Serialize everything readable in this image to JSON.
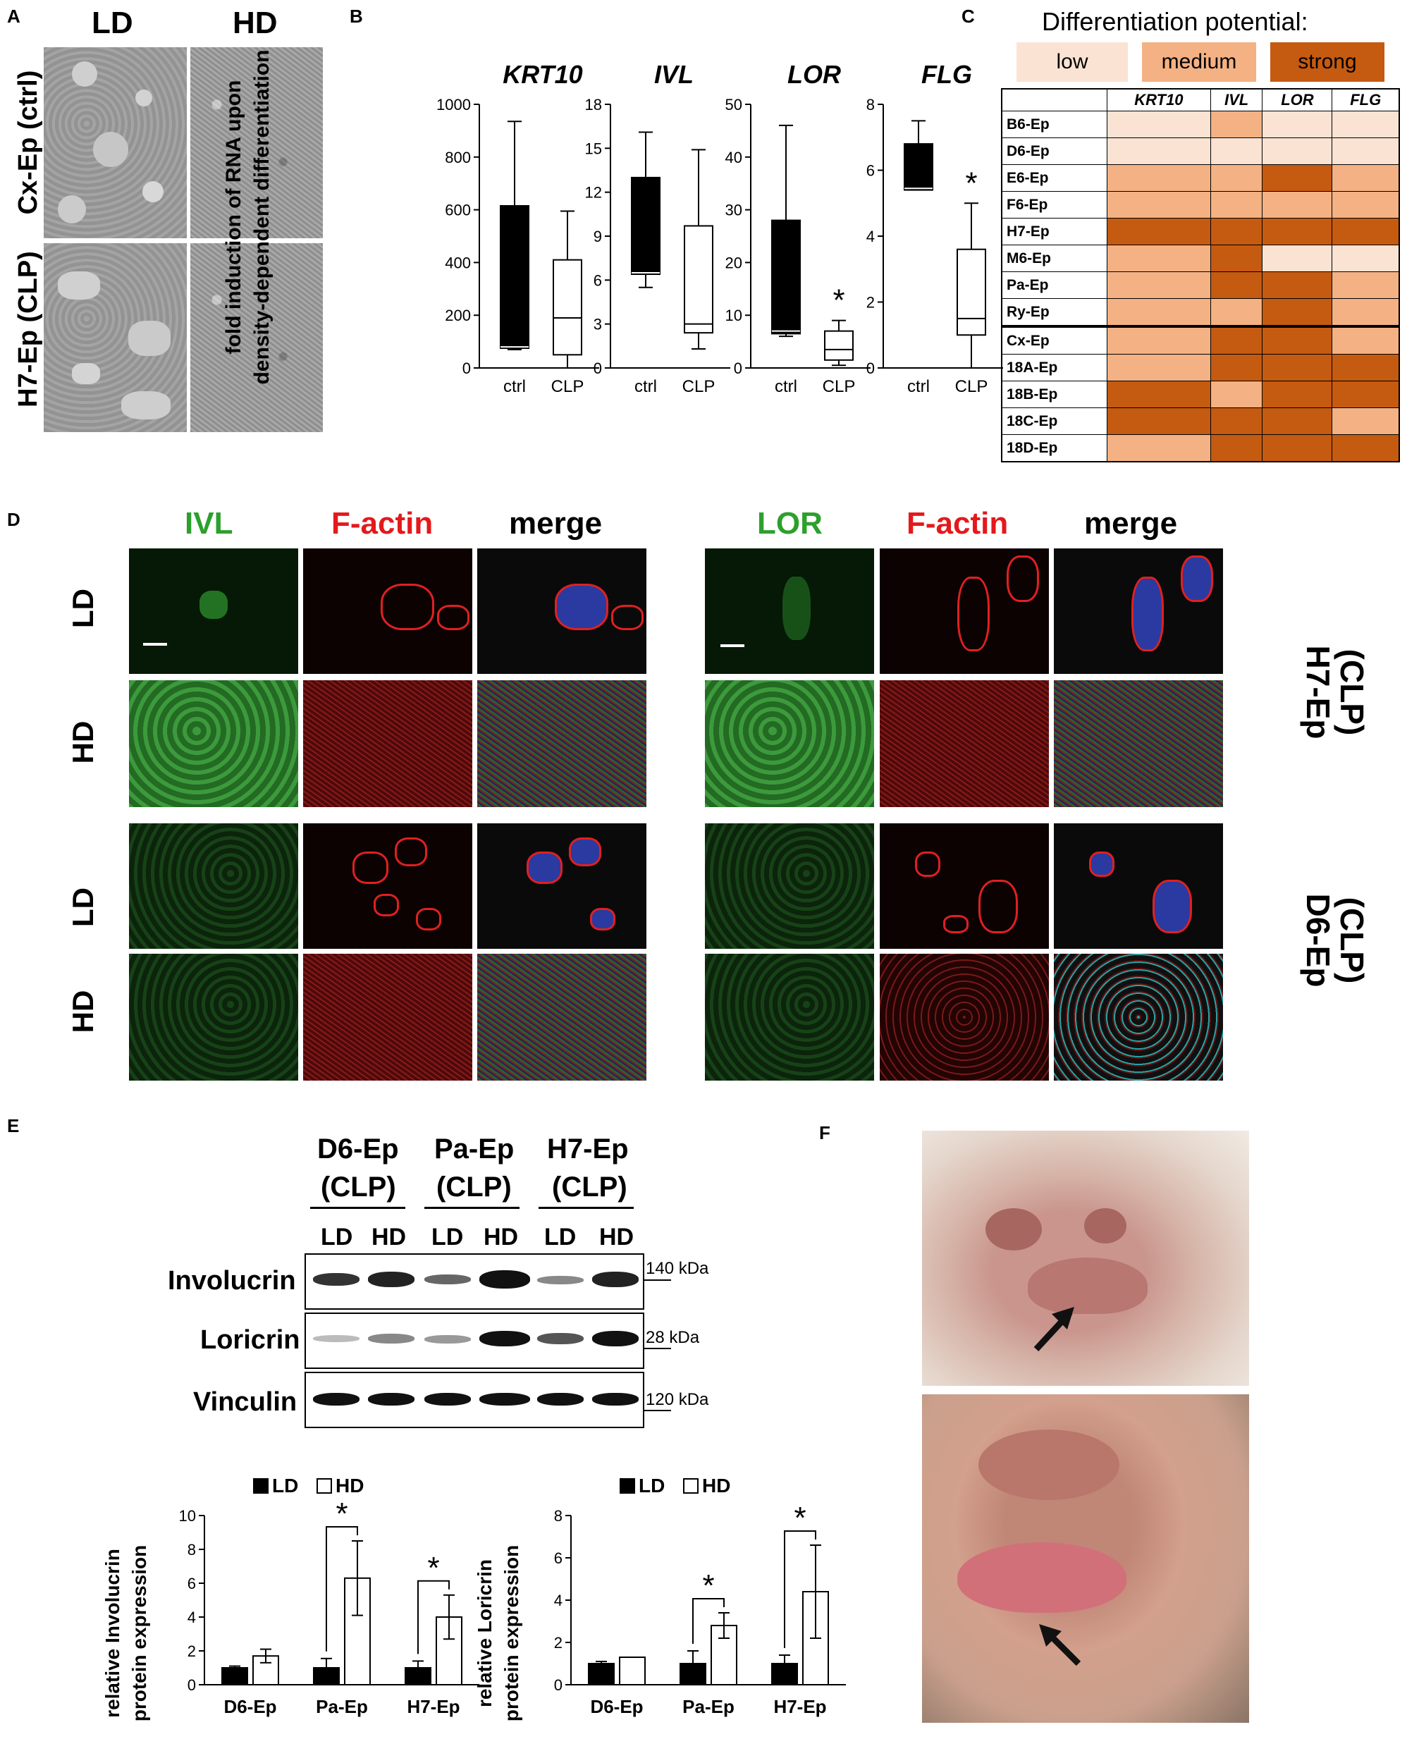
{
  "panels": {
    "A": "A",
    "B": "B",
    "C": "C",
    "D": "D",
    "E": "E",
    "F": "F"
  },
  "panelA": {
    "col_labels": [
      "LD",
      "HD"
    ],
    "row_labels": [
      "Cx-Ep (ctrl)",
      "H7-Ep (CLP)"
    ]
  },
  "panelB": {
    "ylabel_line1": "fold induction of RNA upon",
    "ylabel_line2": "density-dependent  differentiation"
  },
  "panelC": {
    "title": "Differentiation potential:",
    "legend": [
      {
        "label": "low",
        "color": "#fbe3d4"
      },
      {
        "label": "medium",
        "color": "#f4b183"
      },
      {
        "label": "strong",
        "color": "#c55a11"
      }
    ],
    "columns": [
      "KRT10",
      "IVL",
      "LOR",
      "FLG"
    ],
    "rows": [
      {
        "name": "B6-Ep",
        "levels": [
          0,
          1,
          0,
          0
        ]
      },
      {
        "name": "D6-Ep",
        "levels": [
          0,
          0,
          0,
          0
        ]
      },
      {
        "name": "E6-Ep",
        "levels": [
          1,
          1,
          2,
          1
        ]
      },
      {
        "name": "F6-Ep",
        "levels": [
          1,
          1,
          1,
          1
        ]
      },
      {
        "name": "H7-Ep",
        "levels": [
          2,
          2,
          2,
          2
        ]
      },
      {
        "name": "M6-Ep",
        "levels": [
          1,
          2,
          0,
          0
        ]
      },
      {
        "name": "Pa-Ep",
        "levels": [
          1,
          2,
          2,
          1
        ]
      },
      {
        "name": "Ry-Ep",
        "levels": [
          1,
          1,
          2,
          1
        ]
      },
      {
        "name": "Cx-Ep",
        "levels": [
          1,
          2,
          2,
          1
        ]
      },
      {
        "name": "18A-Ep",
        "levels": [
          1,
          2,
          2,
          2
        ]
      },
      {
        "name": "18B-Ep",
        "levels": [
          2,
          1,
          2,
          2
        ]
      },
      {
        "name": "18C-Ep",
        "levels": [
          2,
          2,
          2,
          1
        ]
      },
      {
        "name": "18D-Ep",
        "levels": [
          1,
          2,
          2,
          2
        ]
      }
    ]
  },
  "panelD": {
    "left_cols": [
      {
        "label": "IVL",
        "color": "#2ca02c"
      },
      {
        "label": "F-actin",
        "color": "#e3191c"
      },
      {
        "label": "merge",
        "color": "#000000"
      }
    ],
    "right_cols": [
      {
        "label": "LOR",
        "color": "#2ca02c"
      },
      {
        "label": "F-actin",
        "color": "#e3191c"
      },
      {
        "label": "merge",
        "color": "#000000"
      }
    ],
    "row_labels": [
      "LD",
      "HD",
      "LD",
      "HD"
    ],
    "group_labels": [
      [
        "H7-Ep",
        "(CLP)"
      ],
      [
        "D6-Ep",
        "(CLP)"
      ]
    ]
  },
  "panelE": {
    "lanes_groups": [
      [
        "D6-Ep",
        "(CLP)"
      ],
      [
        "Pa-Ep",
        "(CLP)"
      ],
      [
        "H7-Ep",
        "(CLP)"
      ]
    ],
    "lane_labels": [
      "LD",
      "HD",
      "LD",
      "HD",
      "LD",
      "HD"
    ],
    "blots": [
      {
        "name": "Involucrin",
        "marker": "140 kDa"
      },
      {
        "name": "Loricrin",
        "marker": "28 kDa"
      },
      {
        "name": "Vinculin",
        "marker": "120 kDa"
      }
    ],
    "legend": [
      "LD",
      "HD"
    ],
    "ylabel_inv": [
      "relative Involucrin",
      "protein expression"
    ],
    "ylabel_lor": [
      "relative Loricrin",
      "protein expression"
    ]
  },
  "chart_data": [
    {
      "type": "boxplot",
      "title": "KRT10",
      "categories": [
        "ctrl",
        "CLP"
      ],
      "ylim": [
        0,
        1000
      ],
      "yticks": [
        0,
        200,
        400,
        600,
        800,
        1000
      ],
      "boxes": [
        {
          "min": 70,
          "q1": 75,
          "median": 80,
          "q3": 615,
          "max": 935,
          "fill": "black"
        },
        {
          "min": 0,
          "q1": 50,
          "median": 190,
          "q3": 410,
          "max": 595,
          "fill": "white"
        }
      ],
      "significant": []
    },
    {
      "type": "boxplot",
      "title": "IVL",
      "categories": [
        "ctrl",
        "CLP"
      ],
      "ylim": [
        0,
        18
      ],
      "yticks": [
        0,
        3,
        6,
        9,
        12,
        15,
        18
      ],
      "boxes": [
        {
          "min": 5.5,
          "q1": 6.4,
          "median": 6.5,
          "q3": 13.0,
          "max": 16.1,
          "fill": "black"
        },
        {
          "min": 1.3,
          "q1": 2.4,
          "median": 3.0,
          "q3": 9.7,
          "max": 14.9,
          "fill": "white"
        }
      ],
      "significant": []
    },
    {
      "type": "boxplot",
      "title": "LOR",
      "categories": [
        "ctrl",
        "CLP"
      ],
      "ylim": [
        0,
        50
      ],
      "yticks": [
        0,
        10,
        20,
        30,
        40,
        50
      ],
      "boxes": [
        {
          "min": 6,
          "q1": 6.5,
          "median": 7,
          "q3": 28,
          "max": 46,
          "fill": "black"
        },
        {
          "min": 0.5,
          "q1": 1.5,
          "median": 3.5,
          "q3": 7,
          "max": 9,
          "fill": "white"
        }
      ],
      "significant": [
        "CLP"
      ]
    },
    {
      "type": "boxplot",
      "title": "FLG",
      "categories": [
        "ctrl",
        "CLP"
      ],
      "ylim": [
        0,
        8
      ],
      "yticks": [
        0,
        2,
        4,
        6,
        8
      ],
      "boxes": [
        {
          "min": 5.4,
          "q1": 5.4,
          "median": 5.45,
          "q3": 6.8,
          "max": 7.5,
          "fill": "black"
        },
        {
          "min": 0,
          "q1": 1.0,
          "median": 1.5,
          "q3": 3.6,
          "max": 5.0,
          "fill": "white"
        }
      ],
      "significant": [
        "CLP"
      ]
    },
    {
      "type": "bar",
      "categories": [
        "D6-Ep",
        "Pa-Ep",
        "H7-Ep"
      ],
      "ylim": [
        0,
        10
      ],
      "yticks": [
        0,
        2,
        4,
        6,
        8,
        10
      ],
      "series": [
        {
          "name": "LD",
          "values": [
            1,
            1,
            1
          ],
          "errors": [
            0.1,
            0.55,
            0.4
          ]
        },
        {
          "name": "HD",
          "values": [
            1.7,
            6.3,
            4.0
          ],
          "errors": [
            0.4,
            2.2,
            1.3
          ]
        }
      ],
      "significant": [
        "Pa-Ep",
        "H7-Ep"
      ]
    },
    {
      "type": "bar",
      "categories": [
        "D6-Ep",
        "Pa-Ep",
        "H7-Ep"
      ],
      "ylim": [
        0,
        8
      ],
      "yticks": [
        0,
        2,
        4,
        6,
        8
      ],
      "series": [
        {
          "name": "LD",
          "values": [
            1,
            1,
            1
          ],
          "errors": [
            0.1,
            0.6,
            0.4
          ]
        },
        {
          "name": "HD",
          "values": [
            1.3,
            2.8,
            4.4
          ],
          "errors": [
            0,
            0.6,
            2.2
          ]
        }
      ],
      "significant": [
        "Pa-Ep",
        "H7-Ep"
      ]
    }
  ],
  "star": "*"
}
